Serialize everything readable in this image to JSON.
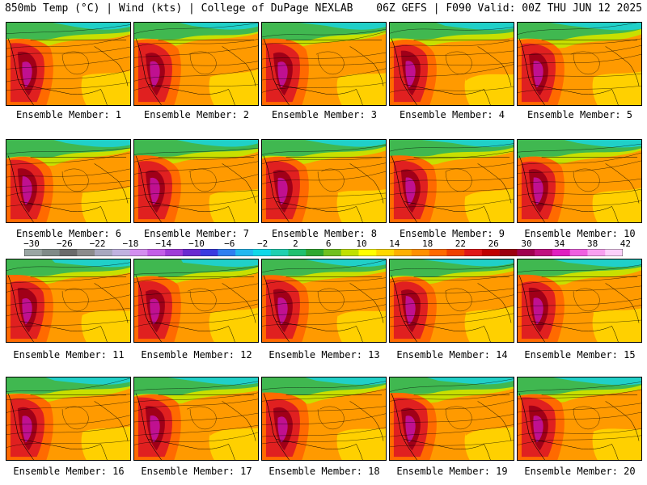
{
  "header": {
    "left": "850mb Temp (°C) | Wind (kts) | College of DuPage NEXLAB",
    "right": "06Z GEFS | F090 Valid: 00Z THU JUN 12 2025"
  },
  "panels": [
    {
      "label": "Ensemble Member: 1"
    },
    {
      "label": "Ensemble Member: 2"
    },
    {
      "label": "Ensemble Member: 3"
    },
    {
      "label": "Ensemble Member: 4"
    },
    {
      "label": "Ensemble Member: 5"
    },
    {
      "label": "Ensemble Member: 6"
    },
    {
      "label": "Ensemble Member: 7"
    },
    {
      "label": "Ensemble Member: 8"
    },
    {
      "label": "Ensemble Member: 9"
    },
    {
      "label": "Ensemble Member: 10"
    },
    {
      "label": "Ensemble Member: 11"
    },
    {
      "label": "Ensemble Member: 12"
    },
    {
      "label": "Ensemble Member: 13"
    },
    {
      "label": "Ensemble Member: 14"
    },
    {
      "label": "Ensemble Member: 15"
    },
    {
      "label": "Ensemble Member: 16"
    },
    {
      "label": "Ensemble Member: 17"
    },
    {
      "label": "Ensemble Member: 18"
    },
    {
      "label": "Ensemble Member: 19"
    },
    {
      "label": "Ensemble Member: 20"
    }
  ],
  "colorbar": {
    "labels": [
      "−30",
      "−26",
      "−22",
      "−18",
      "−14",
      "−10",
      "−6",
      "−2",
      "2",
      "6",
      "10",
      "14",
      "18",
      "22",
      "26",
      "30",
      "34",
      "38",
      "42"
    ],
    "colors": [
      "#9aa6a3",
      "#808b88",
      "#6b6b6b",
      "#8c8c8c",
      "#a8a8bf",
      "#c0b2e0",
      "#d48ef0",
      "#c45ee8",
      "#a03cd8",
      "#6a2ad0",
      "#3a3ae0",
      "#2f7ff0",
      "#22b8f0",
      "#10d8e8",
      "#20d0b0",
      "#20c070",
      "#30a830",
      "#70c020",
      "#c0e000",
      "#ffff00",
      "#ffd800",
      "#ffb000",
      "#ff9000",
      "#ff6a00",
      "#f04000",
      "#e01818",
      "#c00000",
      "#9c0010",
      "#a00050",
      "#c01080",
      "#e020c0",
      "#f060e0",
      "#f8a0f0",
      "#fcd0fa"
    ]
  }
}
